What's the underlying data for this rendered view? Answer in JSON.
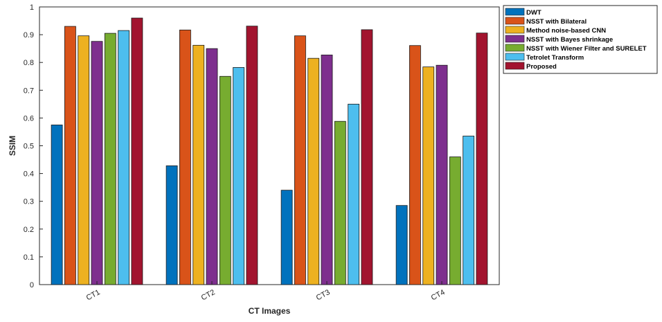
{
  "chart_data": {
    "type": "bar",
    "xlabel": "CT Images",
    "ylabel": "SSIM",
    "ylim": [
      0,
      1
    ],
    "yticks": [
      "0",
      "0.1",
      "0.2",
      "0.3",
      "0.4",
      "0.5",
      "0.6",
      "0.7",
      "0.8",
      "0.9",
      "1"
    ],
    "categories": [
      "CT1",
      "CT2",
      "CT3",
      "CT4"
    ],
    "legend_position": "top-right-outside",
    "grid": false,
    "series": [
      {
        "name": "DWT",
        "color": "#0072BD",
        "values": [
          0.575,
          0.428,
          0.34,
          0.285
        ]
      },
      {
        "name": "NSST with Bilateral",
        "color": "#D95319",
        "values": [
          0.93,
          0.917,
          0.896,
          0.861
        ]
      },
      {
        "name": "Method noise-based CNN",
        "color": "#EDB120",
        "values": [
          0.896,
          0.862,
          0.815,
          0.784
        ]
      },
      {
        "name": "NSST with Bayes shrinkage",
        "color": "#7E2F8E",
        "values": [
          0.876,
          0.85,
          0.827,
          0.79
        ]
      },
      {
        "name": "NSST with Wiener Filter and SURELET",
        "color": "#77AC30",
        "values": [
          0.905,
          0.75,
          0.588,
          0.46
        ]
      },
      {
        "name": "Tetrolet Transform",
        "color": "#4DBEEE",
        "values": [
          0.915,
          0.782,
          0.65,
          0.535
        ]
      },
      {
        "name": "Proposed",
        "color": "#A2142F",
        "values": [
          0.96,
          0.931,
          0.918,
          0.906
        ]
      }
    ]
  }
}
